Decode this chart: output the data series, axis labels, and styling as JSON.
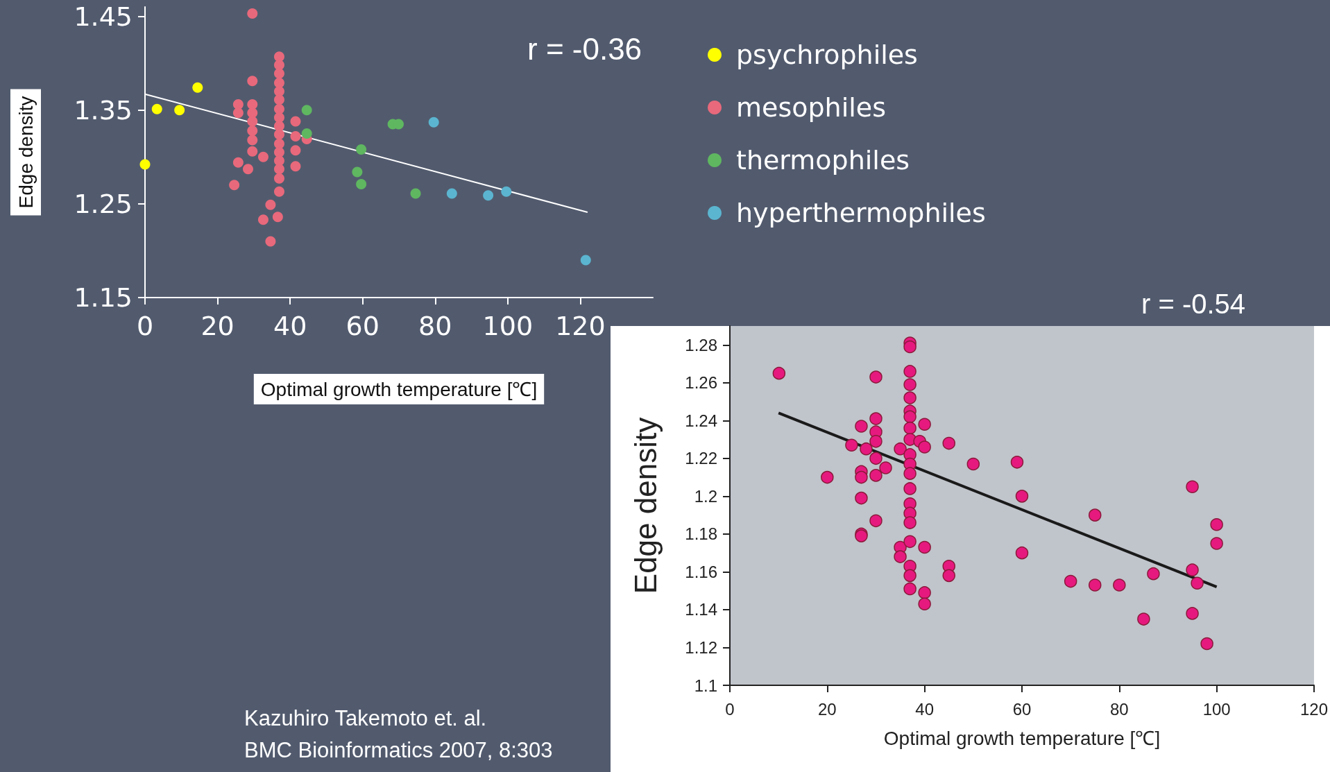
{
  "chart_data": [
    {
      "type": "scatter",
      "xlabel": "Optimal growth temperature [℃]",
      "ylabel": "Edge density",
      "xlim": [
        0,
        140
      ],
      "xticks": [
        0,
        20,
        40,
        60,
        80,
        100,
        120
      ],
      "ylim": [
        1.15,
        1.46
      ],
      "yticks": [
        1.15,
        1.25,
        1.35,
        1.45
      ],
      "grid": false,
      "legend": "right",
      "marker": "circle",
      "annotations": [
        "r = -0.36",
        "Kazuhiro Takemoto et. al.",
        "BMC Bioinformatics 2007, 8:303"
      ],
      "series": [
        {
          "name": "psychrophiles",
          "color": "#ffff00",
          "x": [
            0,
            3.3,
            9.5,
            14.5
          ],
          "values": [
            1.292,
            1.351,
            1.35,
            1.374
          ]
        },
        {
          "name": "mesophiles",
          "color": "#e8697b",
          "x": [
            29.6,
            29.6,
            25.7,
            25.7,
            29.6,
            29.6,
            29.6,
            29.6,
            29.6,
            29.6,
            32.6,
            25.7,
            28.4,
            24.6,
            37,
            37,
            37,
            37,
            37,
            37,
            37,
            37,
            37,
            37,
            37,
            37,
            37,
            37,
            37,
            37,
            34.6,
            32.6,
            36.6,
            34.6,
            41.5,
            41.5,
            41.5,
            41.5,
            44.6
          ],
          "values": [
            1.453,
            1.381,
            1.356,
            1.347,
            1.356,
            1.347,
            1.338,
            1.328,
            1.318,
            1.306,
            1.3,
            1.294,
            1.287,
            1.27,
            1.407,
            1.398,
            1.389,
            1.379,
            1.37,
            1.361,
            1.351,
            1.342,
            1.333,
            1.324,
            1.314,
            1.305,
            1.296,
            1.287,
            1.277,
            1.263,
            1.249,
            1.233,
            1.236,
            1.21,
            1.338,
            1.322,
            1.307,
            1.29,
            1.319
          ]
        },
        {
          "name": "thermophiles",
          "color": "#5fb760",
          "x": [
            44.6,
            44.6,
            59.6,
            58.5,
            59.6,
            68.3,
            69.9,
            74.6
          ],
          "values": [
            1.35,
            1.325,
            1.308,
            1.284,
            1.271,
            1.335,
            1.335,
            1.261
          ]
        },
        {
          "name": "hyperthermophiles",
          "color": "#5bb5d0",
          "x": [
            79.6,
            84.6,
            94.6,
            99.6,
            121.5
          ],
          "values": [
            1.337,
            1.261,
            1.259,
            1.263,
            1.19
          ]
        },
        {
          "type": "line",
          "marker": "none",
          "color": "#ffffff",
          "x": [
            0,
            122
          ],
          "values": [
            1.367,
            1.241
          ]
        }
      ]
    },
    {
      "type": "scatter",
      "xlabel": "Optimal growth temperature [℃]",
      "ylabel": "Edge density",
      "xlim": [
        0,
        120
      ],
      "xticks": [
        0,
        20,
        40,
        60,
        80,
        100,
        120
      ],
      "ylim": [
        1.1,
        1.29
      ],
      "yticks": [
        1.1,
        1.12,
        1.14,
        1.16,
        1.18,
        1.2,
        1.22,
        1.24,
        1.26,
        1.28
      ],
      "grid": false,
      "marker": "circle",
      "annotations": [
        "r = -0.54"
      ],
      "series": [
        {
          "color": "#e6197f",
          "x": [
            10.1,
            20,
            30,
            27,
            25,
            28,
            27,
            27,
            27,
            27,
            27,
            30,
            30,
            30,
            30,
            30,
            30,
            32,
            35,
            35,
            35,
            37,
            37,
            37,
            37,
            37,
            37,
            37,
            37,
            37,
            37,
            37,
            37,
            37,
            37,
            37,
            37,
            37,
            37,
            37,
            37,
            39,
            40,
            40,
            40,
            40,
            40,
            45,
            45,
            45,
            50,
            59,
            60,
            60,
            70,
            75,
            75,
            80,
            85,
            87,
            95,
            95,
            96,
            95,
            98,
            100,
            100
          ],
          "values": [
            1.265,
            1.21,
            1.263,
            1.237,
            1.227,
            1.225,
            1.213,
            1.21,
            1.199,
            1.18,
            1.179,
            1.241,
            1.234,
            1.229,
            1.22,
            1.211,
            1.187,
            1.215,
            1.225,
            1.173,
            1.168,
            1.281,
            1.279,
            1.266,
            1.259,
            1.252,
            1.245,
            1.242,
            1.236,
            1.23,
            1.222,
            1.217,
            1.212,
            1.204,
            1.196,
            1.191,
            1.186,
            1.176,
            1.163,
            1.158,
            1.151,
            1.229,
            1.238,
            1.226,
            1.173,
            1.149,
            1.143,
            1.228,
            1.163,
            1.158,
            1.217,
            1.218,
            1.2,
            1.17,
            1.155,
            1.19,
            1.153,
            1.153,
            1.135,
            1.159,
            1.205,
            1.161,
            1.154,
            1.138,
            1.122,
            1.185,
            1.175
          ]
        },
        {
          "type": "line",
          "marker": "none",
          "color": "#1a1a1a",
          "x": [
            10,
            100
          ],
          "values": [
            1.244,
            1.152
          ]
        }
      ]
    }
  ]
}
